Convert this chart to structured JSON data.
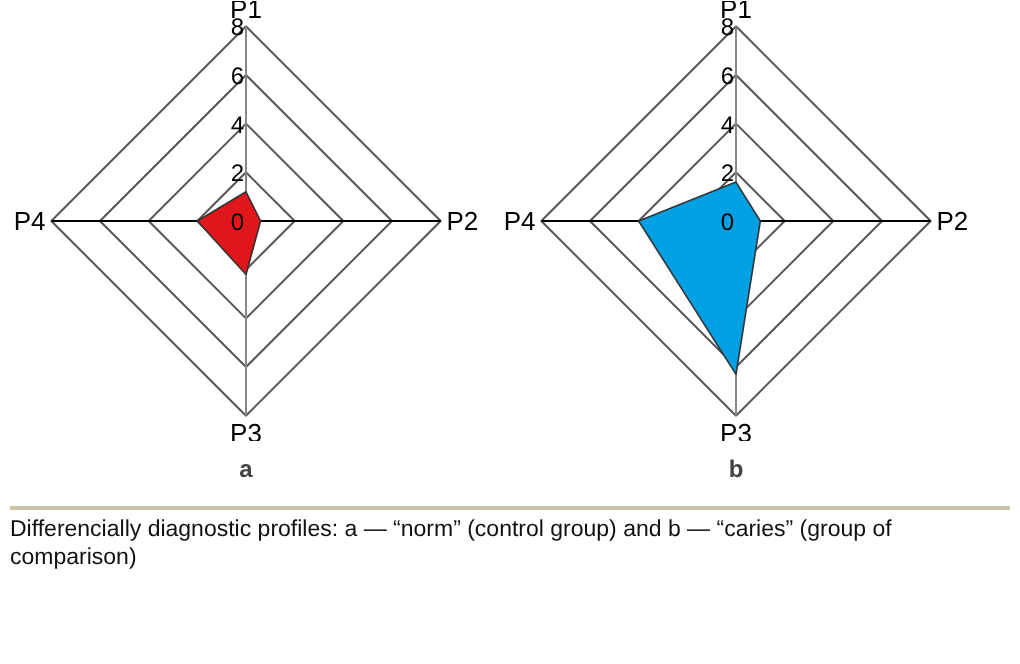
{
  "chart_data": [
    {
      "type": "radar",
      "title": "a",
      "categories": [
        "P1",
        "P2",
        "P3",
        "P4"
      ],
      "ylim": [
        0,
        8
      ],
      "yticks": [
        0,
        2,
        4,
        6,
        8
      ],
      "grid": true,
      "series": [
        {
          "color": "#e0161b",
          "values": [
            1.2,
            0.6,
            2.2,
            2
          ]
        }
      ]
    },
    {
      "type": "radar",
      "title": "b",
      "categories": [
        "P1",
        "P2",
        "P3",
        "P4"
      ],
      "ylim": [
        0,
        8
      ],
      "yticks": [
        0,
        2,
        4,
        6,
        8
      ],
      "grid": true,
      "series": [
        {
          "color": "#00a0e3",
          "values": [
            1.6,
            1,
            6.3,
            4
          ]
        }
      ],
      "annotations": [
        "Differencially diagnostic profiles: a — “norm” (control group) and b — “caries” (group of comparison)"
      ]
    }
  ]
}
